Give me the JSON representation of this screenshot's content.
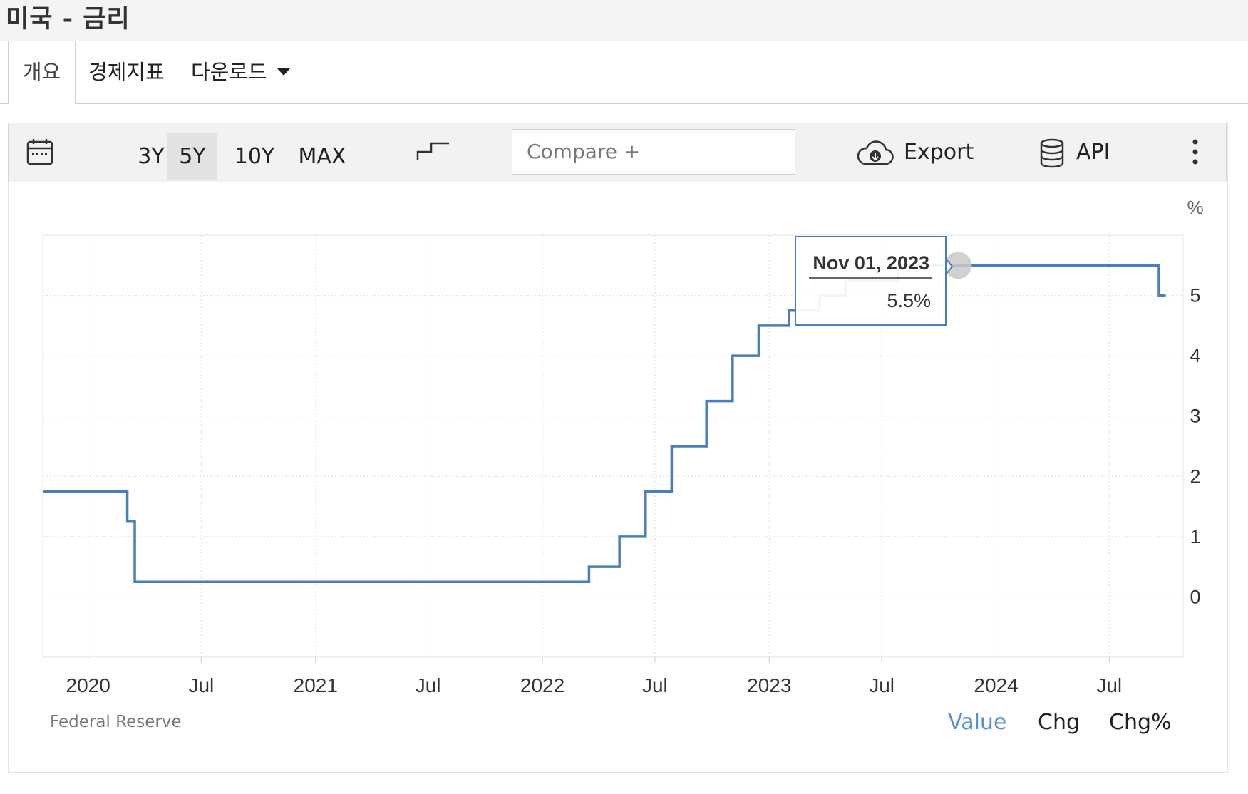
{
  "title": "미국 - 금리",
  "tabs": {
    "overview": "개요",
    "indicators": "경제지표",
    "download": "다운로드"
  },
  "toolbar": {
    "periods": [
      "3Y",
      "5Y",
      "10Y",
      "MAX"
    ],
    "active_period": "5Y",
    "compare_placeholder": "Compare +",
    "export_label": "Export",
    "api_label": "API",
    "icons": [
      "calendar-icon",
      "step-chart-icon",
      "cloud-download-icon",
      "database-icon",
      "more-vertical-icon"
    ]
  },
  "tooltip": {
    "date": "Nov 01, 2023",
    "value": "5.5%"
  },
  "source": "Federal Reserve",
  "value_modes": {
    "value": "Value",
    "chg": "Chg",
    "chg_pct": "Chg%"
  },
  "colors": {
    "line": "#4a7ebb",
    "active_mode": "#5b8fd0"
  },
  "chart_data": {
    "type": "line",
    "step": true,
    "unit_label": "%",
    "ylim": [
      -1,
      6
    ],
    "yticks": [
      "0",
      "1",
      "2",
      "3",
      "4",
      "5"
    ],
    "ytick_values": [
      0,
      1,
      2,
      3,
      4,
      5
    ],
    "grid": true,
    "xticks": [
      {
        "label": "2020",
        "date": "2020-01-01"
      },
      {
        "label": "Jul",
        "date": "2020-07-01"
      },
      {
        "label": "2021",
        "date": "2021-01-01"
      },
      {
        "label": "Jul",
        "date": "2021-07-01"
      },
      {
        "label": "2022",
        "date": "2022-01-01"
      },
      {
        "label": "Jul",
        "date": "2022-07-01"
      },
      {
        "label": "2023",
        "date": "2023-01-01"
      },
      {
        "label": "Jul",
        "date": "2023-07-01"
      },
      {
        "label": "2024",
        "date": "2024-01-01"
      },
      {
        "label": "Jul",
        "date": "2024-07-01"
      }
    ],
    "xlim": [
      "2019-10-20",
      "2024-10-28"
    ],
    "series": [
      {
        "points": [
          {
            "x": "2019-10-20",
            "y": 1.75
          },
          {
            "x": "2020-03-04",
            "y": 1.25
          },
          {
            "x": "2020-03-16",
            "y": 0.25
          },
          {
            "x": "2022-03-17",
            "y": 0.5
          },
          {
            "x": "2022-05-05",
            "y": 1.0
          },
          {
            "x": "2022-06-16",
            "y": 1.75
          },
          {
            "x": "2022-07-28",
            "y": 2.5
          },
          {
            "x": "2022-09-22",
            "y": 3.25
          },
          {
            "x": "2022-11-03",
            "y": 4.0
          },
          {
            "x": "2022-12-15",
            "y": 4.5
          },
          {
            "x": "2023-02-02",
            "y": 4.75
          },
          {
            "x": "2023-03-23",
            "y": 5.0
          },
          {
            "x": "2023-05-04",
            "y": 5.25
          },
          {
            "x": "2023-07-27",
            "y": 5.5
          },
          {
            "x": "2024-09-19",
            "y": 5.0
          },
          {
            "x": "2024-09-30",
            "y": 5.0
          }
        ]
      }
    ]
  }
}
